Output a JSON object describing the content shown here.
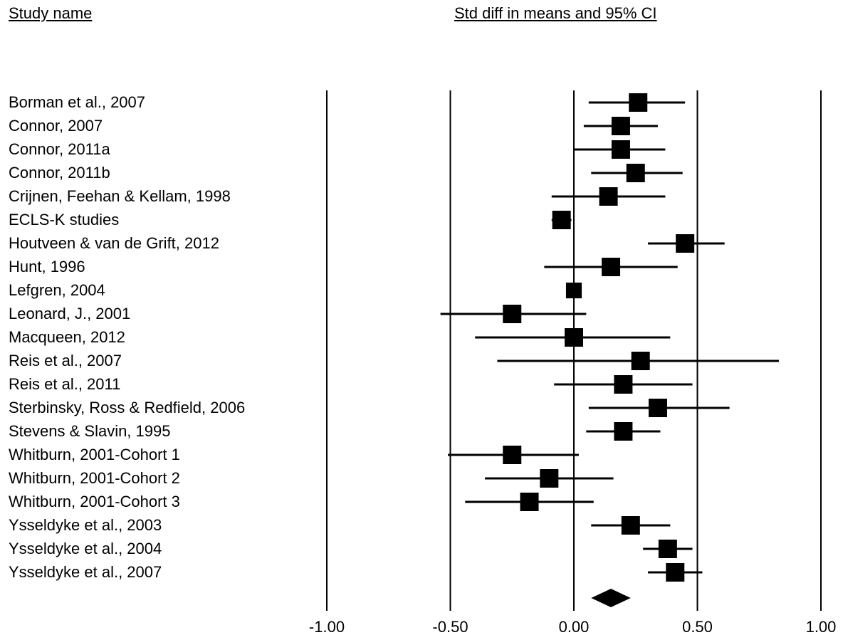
{
  "headers": {
    "study": "Study name",
    "effect": "Std diff in means and 95% CI"
  },
  "chart_data": {
    "type": "forest",
    "xlim": [
      -1.0,
      1.0
    ],
    "xticks": [
      "-1.00",
      "-0.50",
      "0.00",
      "0.50",
      "1.00"
    ],
    "xtick_values": [
      -1.0,
      -0.5,
      0.0,
      0.5,
      1.0
    ],
    "grid": "vertical lines at ticks",
    "studies": [
      {
        "name": "Borman et al., 2007",
        "est": 0.26,
        "lo": 0.06,
        "hi": 0.45,
        "weight": 1.0
      },
      {
        "name": "Connor, 2007",
        "est": 0.19,
        "lo": 0.04,
        "hi": 0.34,
        "weight": 1.0
      },
      {
        "name": "Connor, 2011a",
        "est": 0.19,
        "lo": 0.0,
        "hi": 0.37,
        "weight": 1.0
      },
      {
        "name": "Connor, 2011b",
        "est": 0.25,
        "lo": 0.07,
        "hi": 0.44,
        "weight": 1.0
      },
      {
        "name": "Crijnen, Feehan & Kellam, 1998",
        "est": 0.14,
        "lo": -0.09,
        "hi": 0.37,
        "weight": 1.0
      },
      {
        "name": "ECLS-K studies",
        "est": -0.05,
        "lo": -0.09,
        "hi": -0.01,
        "weight": 1.0
      },
      {
        "name": "Houtveen & van de Grift, 2012",
        "est": 0.45,
        "lo": 0.3,
        "hi": 0.61,
        "weight": 1.0
      },
      {
        "name": "Hunt, 1996",
        "est": 0.15,
        "lo": -0.12,
        "hi": 0.42,
        "weight": 1.0
      },
      {
        "name": "Lefgren, 2004",
        "est": 0.0,
        "lo": -0.02,
        "hi": 0.02,
        "weight": 0.85
      },
      {
        "name": "Leonard, J., 2001",
        "est": -0.25,
        "lo": -0.54,
        "hi": 0.05,
        "weight": 1.0
      },
      {
        "name": "Macqueen, 2012",
        "est": 0.0,
        "lo": -0.4,
        "hi": 0.39,
        "weight": 1.0
      },
      {
        "name": "Reis et al., 2007",
        "est": 0.27,
        "lo": -0.31,
        "hi": 0.83,
        "weight": 1.0
      },
      {
        "name": "Reis et al., 2011",
        "est": 0.2,
        "lo": -0.08,
        "hi": 0.48,
        "weight": 1.0
      },
      {
        "name": "Sterbinsky, Ross & Redfield, 2006",
        "est": 0.34,
        "lo": 0.06,
        "hi": 0.63,
        "weight": 1.0
      },
      {
        "name": "Stevens & Slavin, 1995",
        "est": 0.2,
        "lo": 0.05,
        "hi": 0.35,
        "weight": 1.0
      },
      {
        "name": "Whitburn, 2001-Cohort 1",
        "est": -0.25,
        "lo": -0.51,
        "hi": 0.02,
        "weight": 1.0
      },
      {
        "name": "Whitburn, 2001-Cohort 2",
        "est": -0.1,
        "lo": -0.36,
        "hi": 0.16,
        "weight": 1.0
      },
      {
        "name": "Whitburn, 2001-Cohort 3",
        "est": -0.18,
        "lo": -0.44,
        "hi": 0.08,
        "weight": 1.0
      },
      {
        "name": "Ysseldyke et al., 2003",
        "est": 0.23,
        "lo": 0.07,
        "hi": 0.39,
        "weight": 1.0
      },
      {
        "name": "Ysseldyke et al., 2004",
        "est": 0.38,
        "lo": 0.28,
        "hi": 0.48,
        "weight": 1.0
      },
      {
        "name": "Ysseldyke et al., 2007",
        "est": 0.41,
        "lo": 0.3,
        "hi": 0.52,
        "weight": 1.0
      }
    ],
    "summary": {
      "est": 0.15,
      "lo": 0.07,
      "hi": 0.23
    }
  }
}
